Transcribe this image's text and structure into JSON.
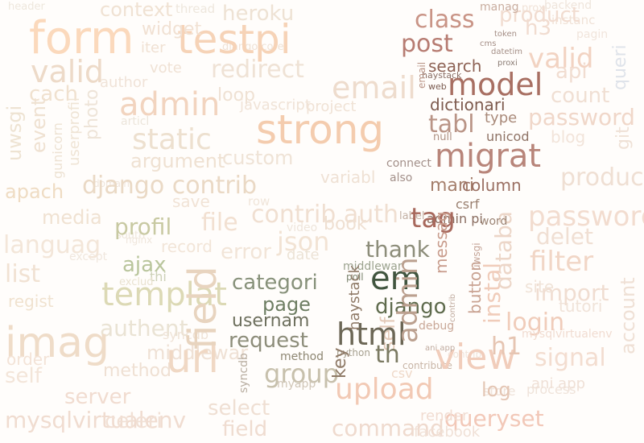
{
  "words": [
    {
      "text": "strong",
      "color": "#f4ccae"
    },
    {
      "text": "form",
      "color": "#fbd9bc"
    },
    {
      "text": "testpi",
      "color": "#f6d3b7"
    },
    {
      "text": "model",
      "color": "#a86f62"
    },
    {
      "text": "migrat",
      "color": "#b8857a"
    },
    {
      "text": "post",
      "color": "#b77c72"
    },
    {
      "text": "class",
      "color": "#c99486"
    },
    {
      "text": "search",
      "color": "#8e6356"
    },
    {
      "text": "admin",
      "color": "#f2d4bf"
    },
    {
      "text": "tag",
      "color": "#a8695d"
    },
    {
      "text": "em",
      "color": "#41553f"
    },
    {
      "text": "html",
      "color": "#6c6756"
    },
    {
      "text": "django",
      "color": "#5f6b4d"
    },
    {
      "text": "page",
      "color": "#6e7e63"
    },
    {
      "text": "categori",
      "color": "#87917a"
    },
    {
      "text": "thank",
      "color": "#8d8d7a"
    },
    {
      "text": "request",
      "color": "#8d8d7a"
    },
    {
      "text": "usernam",
      "color": "#6e705e"
    },
    {
      "text": "group",
      "color": "#c7c0ac"
    },
    {
      "text": "url",
      "color": "#f0d8c4"
    },
    {
      "text": "imag",
      "color": "#efdcc8"
    },
    {
      "text": "templat",
      "color": "#dcd9b5"
    },
    {
      "text": "profil",
      "color": "#c8c9a2"
    },
    {
      "text": "ajax",
      "color": "#b9c59c"
    },
    {
      "text": "django contrib",
      "color": "#ead9c5"
    },
    {
      "text": "apach",
      "color": "#efdcc3"
    },
    {
      "text": "file",
      "color": "#f2e0d1"
    },
    {
      "text": "json",
      "color": "#f2e3d4"
    },
    {
      "text": "static",
      "color": "#ede0cf"
    },
    {
      "text": "serial",
      "color": "#eddac8"
    },
    {
      "text": "view",
      "color": "#f1cdbb"
    },
    {
      "text": "upload",
      "color": "#f2c9b4"
    },
    {
      "text": "queryset",
      "color": "#f2c8b8"
    },
    {
      "text": "valid",
      "color": "#f2d3c2"
    },
    {
      "text": "password",
      "color": "#f0d7c9"
    },
    {
      "text": "filter",
      "color": "#f2dccf"
    },
    {
      "text": "login",
      "color": "#f1d6c6"
    },
    {
      "text": "instal",
      "color": "#f0ccba"
    },
    {
      "text": "signal",
      "color": "#f3ddd0"
    },
    {
      "text": "field",
      "color": "#e8d4bf"
    },
    {
      "text": "command",
      "color": "#efdace"
    },
    {
      "text": "select",
      "color": "#efdcd0"
    },
    {
      "text": "mysqlvirtualenv",
      "color": "#efdfd3"
    },
    {
      "text": "celeri",
      "color": "#f0dcd0"
    },
    {
      "text": "server",
      "color": "#f1e0d5"
    },
    {
      "text": "authent",
      "color": "#f1dcd0"
    },
    {
      "text": "regist",
      "color": "#eae3d4"
    },
    {
      "text": "languag",
      "color": "#f0e2cf"
    },
    {
      "text": "media",
      "color": "#f0e2d2"
    },
    {
      "text": "object",
      "color": "#f3e6d9"
    },
    {
      "text": "cach",
      "color": "#f0e1cf"
    },
    {
      "text": "widget",
      "color": "#f1e1d3"
    },
    {
      "text": "heroku",
      "color": "#eee2d4"
    },
    {
      "text": "redirect",
      "color": "#efe2d5"
    },
    {
      "text": "context",
      "color": "#f0e2d3"
    },
    {
      "text": "email",
      "color": "#eedccd"
    },
    {
      "text": "tabl",
      "color": "#b99486"
    },
    {
      "text": "dictionari",
      "color": "#7d5a4d"
    },
    {
      "text": "mani",
      "color": "#a57f6c"
    },
    {
      "text": "column",
      "color": "#9a6f62"
    },
    {
      "text": "messag",
      "color": "#c89c8c"
    },
    {
      "text": "button",
      "color": "#c9a392"
    },
    {
      "text": "key",
      "color": "#8f7a67"
    },
    {
      "text": "th",
      "color": "#7b7a62"
    },
    {
      "text": "h1",
      "color": "#e6c5b2"
    },
    {
      "text": "log",
      "color": "#e4c6b4"
    },
    {
      "text": "session",
      "color": "#ecd6c8"
    },
    {
      "text": "databa",
      "color": "#f0dfd3"
    },
    {
      "text": "count",
      "color": "#f1ddd1"
    },
    {
      "text": "api",
      "color": "#f1dcd0"
    },
    {
      "text": "h3",
      "color": "#f1dcd0"
    },
    {
      "text": "product",
      "color": "#dfe3ea"
    },
    {
      "text": "queri",
      "color": "#efdfd3"
    },
    {
      "text": "delet",
      "color": "#f0dfd3"
    },
    {
      "text": "import",
      "color": "#f0ddd1"
    },
    {
      "text": "render",
      "color": "#f1dcd1"
    },
    {
      "text": "facebook",
      "color": "#f0e1d7"
    },
    {
      "text": "csv",
      "color": "#efd9c9"
    },
    {
      "text": "permiss",
      "color": "#f0dfd1"
    },
    {
      "text": "index",
      "color": "#efe1d4"
    },
    {
      "text": "contrib auth",
      "color": "#efe3d6"
    },
    {
      "text": "variabl",
      "color": "#efe1d2"
    },
    {
      "text": "custom",
      "color": "#f1e3d6"
    },
    {
      "text": "argument",
      "color": "#ece3d6"
    },
    {
      "text": "save",
      "color": "#efe1d1"
    },
    {
      "text": "date",
      "color": "#f1e2d3"
    },
    {
      "text": "event",
      "color": "#f3e3d7"
    },
    {
      "text": "list",
      "color": "#f3e5d9"
    },
    {
      "text": "order",
      "color": "#efe0d3"
    },
    {
      "text": "self",
      "color": "#efe1d5"
    },
    {
      "text": "method",
      "color": "#8e8773"
    },
    {
      "text": "middlewar",
      "color": "#9ca38f"
    },
    {
      "text": "poll",
      "color": "#7d8570"
    },
    {
      "text": "type",
      "color": "#a98a7a"
    },
    {
      "text": "unicod",
      "color": "#8f7366"
    },
    {
      "text": "csrf",
      "color": "#9a8070"
    },
    {
      "text": "admin pi",
      "color": "#8a6d60"
    },
    {
      "text": "word",
      "color": "#9c8576"
    },
    {
      "text": "connect",
      "color": "#a3908a"
    },
    {
      "text": "also",
      "color": "#a3908a"
    },
    {
      "text": "allauth",
      "color": "#af9385"
    },
    {
      "text": "null",
      "color": "#c2b0a4"
    },
    {
      "text": "label",
      "color": "#c9a898"
    },
    {
      "text": "debug",
      "color": "#c8b5a6"
    },
    {
      "text": "contribute",
      "color": "#c3b7a9"
    },
    {
      "text": "python",
      "color": "#a6a08f"
    },
    {
      "text": "myapp",
      "color": "#d0c6b7"
    },
    {
      "text": "jqueri",
      "color": "#efe0d2"
    },
    {
      "text": "book",
      "color": "#efe1d3"
    },
    {
      "text": "loop",
      "color": "#f0e3d7"
    },
    {
      "text": "javascript",
      "color": "#f0e2d5"
    },
    {
      "text": "project",
      "color": "#f0e2d5"
    },
    {
      "text": "error",
      "color": "#f0e1d3"
    },
    {
      "text": "record",
      "color": "#f2e5d8"
    },
    {
      "text": "thi",
      "color": "#f2e5d8"
    },
    {
      "text": "exclud",
      "color": "#cdd1b8"
    },
    {
      "text": "manag",
      "color": "#e9e2d0"
    },
    {
      "text": "thread",
      "color": "#eee7dd"
    },
    {
      "text": "header",
      "color": "#eee7dd"
    },
    {
      "text": "backend",
      "color": "#c9ad9f"
    },
    {
      "text": "instanc",
      "color": "#efe5dc"
    },
    {
      "text": "pagin",
      "color": "#f0e2d7"
    },
    {
      "text": "updat",
      "color": "#f1e5dc"
    },
    {
      "text": "blog",
      "color": "#f2e4da"
    },
    {
      "text": "git",
      "color": "#efe1d6"
    },
    {
      "text": "vote",
      "color": "#7a5a4f"
    },
    {
      "text": "iter",
      "color": "#8a6f66"
    },
    {
      "text": "web",
      "color": "#8b7c74"
    },
    {
      "text": "haystack",
      "color": "#a48e86"
    },
    {
      "text": "proxi",
      "color": "#a48e86"
    },
    {
      "text": "datetim",
      "color": "#a48e86"
    },
    {
      "text": "token",
      "color": "#efe2d6"
    },
    {
      "text": "cms",
      "color": "#f0e3d8"
    },
    {
      "text": "sql",
      "color": "#eee4d8"
    },
    {
      "text": "django core",
      "color": "#ece5db"
    },
    {
      "text": "author",
      "color": "#efe5dc"
    },
    {
      "text": "photo",
      "color": "#eee6dc"
    },
    {
      "text": "articl",
      "color": "#f0e7de"
    },
    {
      "text": "domain",
      "color": "#efe6dc"
    },
    {
      "text": "south",
      "color": "#f0e5da"
    },
    {
      "text": "except",
      "color": "#eee5db"
    },
    {
      "text": "nginx",
      "color": "#f0e3d9"
    },
    {
      "text": "row",
      "color": "#f0e3d8"
    },
    {
      "text": "video",
      "color": "#e3cfc4"
    },
    {
      "text": "tutori",
      "color": "#d7c3b6"
    },
    {
      "text": "site",
      "color": "#efe5dc"
    },
    {
      "text": "account",
      "color": "#efe0d5"
    },
    {
      "text": "process",
      "color": "#efe3da"
    },
    {
      "text": "ani app",
      "color": "#efe0d6"
    },
    {
      "text": "store",
      "color": "#efe3da"
    },
    {
      "text": "syncdb",
      "color": "#efe3d7"
    },
    {
      "text": "contrib",
      "color": "#f1e3d6"
    },
    {
      "text": "uwsgi",
      "color": "#b8ada0"
    },
    {
      "text": "gunicorn",
      "color": "#c0ab9f"
    },
    {
      "text": "userprofil",
      "color": "#c4a396"
    },
    {
      "text": "choic",
      "color": "#eee3d2"
    },
    {
      "text": "formset",
      "color": "#ede2d3"
    },
    {
      "text": "urls",
      "color": "#efe4d5"
    },
    {
      "text": "blockquot",
      "color": "#efe6de"
    },
    {
      "text": "statu",
      "color": "#efe6de"
    }
  ]
}
